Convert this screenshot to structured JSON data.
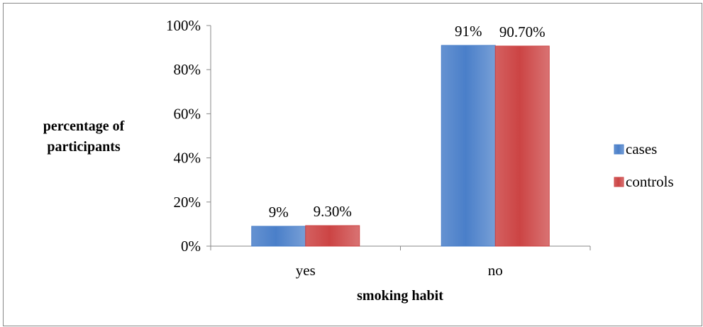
{
  "chart_data": {
    "type": "bar",
    "categories": [
      "yes",
      "no"
    ],
    "series": [
      {
        "name": "cases",
        "values": [
          9,
          91
        ],
        "labels": [
          "9%",
          "91%"
        ],
        "color": "#4a7fc9"
      },
      {
        "name": "controls",
        "values": [
          9.3,
          90.7
        ],
        "labels": [
          "9.30%",
          "90.70%"
        ],
        "color": "#cc4444"
      }
    ],
    "xlabel": "smoking habit",
    "ylabel_lines": [
      "percentage of",
      "participants"
    ],
    "ylim": [
      0,
      100
    ],
    "yticks": [
      0,
      20,
      40,
      60,
      80,
      100
    ],
    "ytick_labels": [
      "0%",
      "20%",
      "40%",
      "60%",
      "80%",
      "100%"
    ],
    "grid": false,
    "legend_position": "right",
    "colors": {
      "frame": "#888888",
      "axis": "#888888",
      "text": "#000000"
    }
  }
}
